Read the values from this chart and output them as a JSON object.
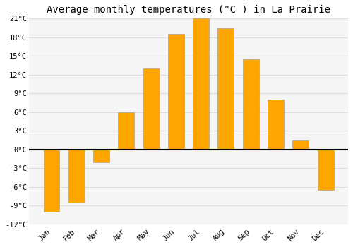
{
  "title": "Average monthly temperatures (°C ) in La Prairie",
  "months": [
    "Jan",
    "Feb",
    "Mar",
    "Apr",
    "May",
    "Jun",
    "Jul",
    "Aug",
    "Sep",
    "Oct",
    "Nov",
    "Dec"
  ],
  "values": [
    -10,
    -8.5,
    -2,
    6,
    13,
    18.5,
    21,
    19.5,
    14.5,
    8,
    1.5,
    -6.5
  ],
  "bar_color": "#FFA500",
  "bar_edge_color": "#999999",
  "background_color": "#ffffff",
  "plot_bg_color": "#f5f5f5",
  "grid_color": "#dddddd",
  "ylim": [
    -12,
    21
  ],
  "yticks": [
    -12,
    -9,
    -6,
    -3,
    0,
    3,
    6,
    9,
    12,
    15,
    18,
    21
  ],
  "title_fontsize": 10,
  "tick_fontsize": 7.5
}
